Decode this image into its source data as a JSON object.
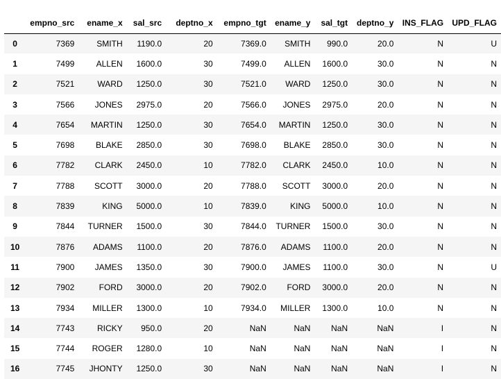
{
  "table": {
    "index_header": "",
    "columns": [
      "empno_src",
      "ename_x",
      "sal_src",
      "deptno_x",
      "empno_tgt",
      "ename_y",
      "sal_tgt",
      "deptno_y",
      "INS_FLAG",
      "UPD_FLAG"
    ],
    "rows": [
      {
        "index": "0",
        "cells": [
          "7369",
          "SMITH",
          "1190.0",
          "20",
          "7369.0",
          "SMITH",
          "990.0",
          "20.0",
          "N",
          "U"
        ]
      },
      {
        "index": "1",
        "cells": [
          "7499",
          "ALLEN",
          "1600.0",
          "30",
          "7499.0",
          "ALLEN",
          "1600.0",
          "30.0",
          "N",
          "N"
        ]
      },
      {
        "index": "2",
        "cells": [
          "7521",
          "WARD",
          "1250.0",
          "30",
          "7521.0",
          "WARD",
          "1250.0",
          "30.0",
          "N",
          "N"
        ]
      },
      {
        "index": "3",
        "cells": [
          "7566",
          "JONES",
          "2975.0",
          "20",
          "7566.0",
          "JONES",
          "2975.0",
          "20.0",
          "N",
          "N"
        ]
      },
      {
        "index": "4",
        "cells": [
          "7654",
          "MARTIN",
          "1250.0",
          "30",
          "7654.0",
          "MARTIN",
          "1250.0",
          "30.0",
          "N",
          "N"
        ]
      },
      {
        "index": "5",
        "cells": [
          "7698",
          "BLAKE",
          "2850.0",
          "30",
          "7698.0",
          "BLAKE",
          "2850.0",
          "30.0",
          "N",
          "N"
        ]
      },
      {
        "index": "6",
        "cells": [
          "7782",
          "CLARK",
          "2450.0",
          "10",
          "7782.0",
          "CLARK",
          "2450.0",
          "10.0",
          "N",
          "N"
        ]
      },
      {
        "index": "7",
        "cells": [
          "7788",
          "SCOTT",
          "3000.0",
          "20",
          "7788.0",
          "SCOTT",
          "3000.0",
          "20.0",
          "N",
          "N"
        ]
      },
      {
        "index": "8",
        "cells": [
          "7839",
          "KING",
          "5000.0",
          "10",
          "7839.0",
          "KING",
          "5000.0",
          "10.0",
          "N",
          "N"
        ]
      },
      {
        "index": "9",
        "cells": [
          "7844",
          "TURNER",
          "1500.0",
          "30",
          "7844.0",
          "TURNER",
          "1500.0",
          "30.0",
          "N",
          "N"
        ]
      },
      {
        "index": "10",
        "cells": [
          "7876",
          "ADAMS",
          "1100.0",
          "20",
          "7876.0",
          "ADAMS",
          "1100.0",
          "20.0",
          "N",
          "N"
        ]
      },
      {
        "index": "11",
        "cells": [
          "7900",
          "JAMES",
          "1350.0",
          "30",
          "7900.0",
          "JAMES",
          "1100.0",
          "30.0",
          "N",
          "U"
        ]
      },
      {
        "index": "12",
        "cells": [
          "7902",
          "FORD",
          "3000.0",
          "20",
          "7902.0",
          "FORD",
          "3000.0",
          "20.0",
          "N",
          "N"
        ]
      },
      {
        "index": "13",
        "cells": [
          "7934",
          "MILLER",
          "1300.0",
          "10",
          "7934.0",
          "MILLER",
          "1300.0",
          "10.0",
          "N",
          "N"
        ]
      },
      {
        "index": "14",
        "cells": [
          "7743",
          "RICKY",
          "950.0",
          "20",
          "NaN",
          "NaN",
          "NaN",
          "NaN",
          "I",
          "N"
        ]
      },
      {
        "index": "15",
        "cells": [
          "7744",
          "ROGER",
          "1280.0",
          "10",
          "NaN",
          "NaN",
          "NaN",
          "NaN",
          "I",
          "N"
        ]
      },
      {
        "index": "16",
        "cells": [
          "7745",
          "JHONTY",
          "1250.0",
          "30",
          "NaN",
          "NaN",
          "NaN",
          "NaN",
          "I",
          "N"
        ]
      }
    ]
  },
  "colors": {
    "background": "#ffffff",
    "row_stripe": "#f5f5f5",
    "header_rule": "#000000",
    "text": "#000000"
  }
}
